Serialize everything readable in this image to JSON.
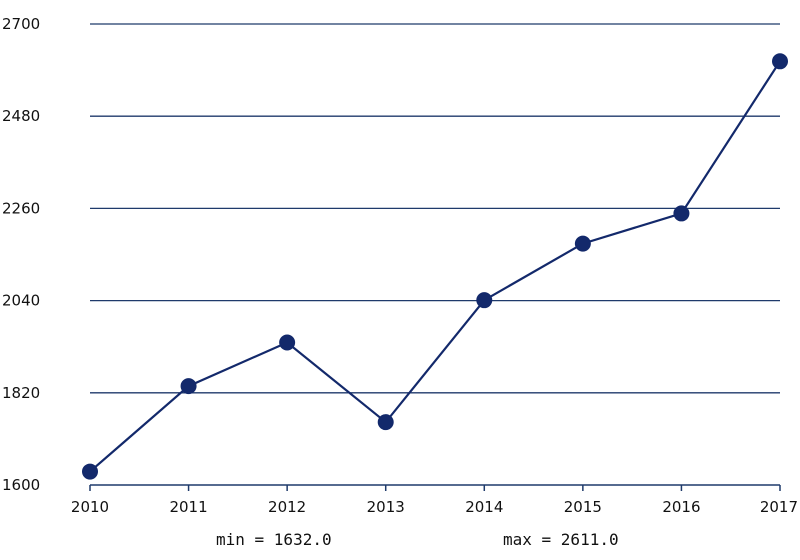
{
  "chart_data": {
    "type": "line",
    "title": "",
    "xlabel": "",
    "ylabel": "",
    "categories": [
      "2010",
      "2011",
      "2012",
      "2013",
      "2014",
      "2015",
      "2016",
      "2017"
    ],
    "series": [
      {
        "values": [
          1632,
          1836,
          1940,
          1750,
          2041,
          2176,
          2248,
          2611
        ]
      }
    ],
    "ylim": [
      1600,
      2700
    ],
    "y_ticks": [
      "1600",
      "1820",
      "2040",
      "2260",
      "2480",
      "2700"
    ],
    "grid": true,
    "line_color": "#13296b",
    "grid_color": "#1f3a6b",
    "legend": "none"
  },
  "stats": {
    "min_text": "min = 1632.0",
    "max_text": "max = 2611.0"
  }
}
